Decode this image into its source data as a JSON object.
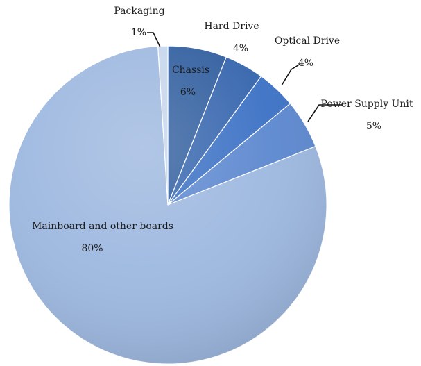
{
  "chart_data": {
    "type": "pie",
    "title": "",
    "slices": [
      {
        "label": "Chassis",
        "percent_label": "6%",
        "value": 6,
        "color": "#2f5d9e"
      },
      {
        "label": "Hard Drive",
        "percent_label": "4%",
        "value": 4,
        "color": "#3464ad"
      },
      {
        "label": "Optical Drive",
        "percent_label": "4%",
        "value": 4,
        "color": "#3a70c4"
      },
      {
        "label": "Power Supply Unit",
        "percent_label": "5%",
        "value": 5,
        "color": "#5b87cf"
      },
      {
        "label": "Mainboard and other boards",
        "percent_label": "80%",
        "value": 80,
        "color": "#9cb7df"
      },
      {
        "label": "Packaging",
        "percent_label": "1%",
        "value": 1,
        "color": "#c6d5ec"
      }
    ],
    "start": "12 o'clock",
    "direction": "clockwise",
    "legend": "none",
    "data_labels": "category name and percentage"
  }
}
